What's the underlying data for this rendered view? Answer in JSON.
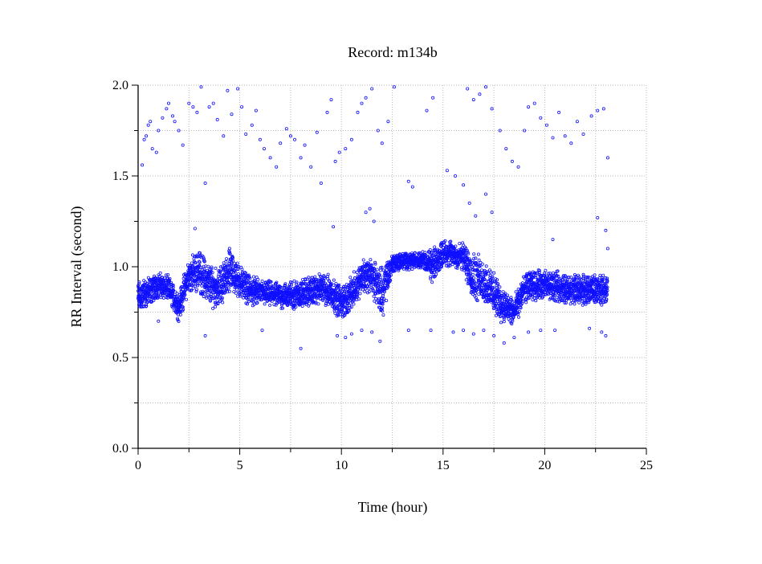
{
  "chart_data": {
    "type": "scatter",
    "title": "Record:  m134b",
    "xlabel": "Time (hour)",
    "ylabel": "RR Interval (second)",
    "xlim": [
      0,
      25
    ],
    "ylim": [
      0,
      2.0
    ],
    "xticks": [
      "0",
      "5",
      "10",
      "15",
      "20",
      "25"
    ],
    "yticks": [
      "0.0",
      "0.5",
      "1.0",
      "1.5",
      "2.0"
    ],
    "grid": true,
    "marker": "open-circle",
    "color": "#1010ff",
    "main_band": {
      "x": [
        0,
        0.5,
        1,
        1.5,
        2,
        2.5,
        3,
        3.5,
        4,
        4.5,
        5,
        5.5,
        6,
        7,
        8,
        9,
        9.5,
        10,
        10.5,
        11,
        11.5,
        12,
        12.5,
        13,
        14,
        14.5,
        15,
        16,
        16.5,
        17,
        17.5,
        18,
        18.5,
        19,
        19.5,
        20,
        21,
        22,
        23,
        23.1
      ],
      "center": [
        0.83,
        0.86,
        0.9,
        0.88,
        0.78,
        0.95,
        0.98,
        0.9,
        0.88,
        0.98,
        0.92,
        0.87,
        0.86,
        0.84,
        0.85,
        0.88,
        0.86,
        0.8,
        0.85,
        0.95,
        0.95,
        0.85,
        1.02,
        1.03,
        1.04,
        1.0,
        1.08,
        1.05,
        0.95,
        0.92,
        0.85,
        0.78,
        0.75,
        0.88,
        0.9,
        0.9,
        0.88,
        0.87,
        0.88,
        0.88
      ],
      "spread": [
        0.08,
        0.07,
        0.06,
        0.06,
        0.07,
        0.08,
        0.1,
        0.1,
        0.09,
        0.1,
        0.08,
        0.07,
        0.06,
        0.06,
        0.07,
        0.07,
        0.08,
        0.08,
        0.08,
        0.08,
        0.08,
        0.12,
        0.05,
        0.04,
        0.04,
        0.08,
        0.06,
        0.07,
        0.12,
        0.1,
        0.1,
        0.08,
        0.07,
        0.07,
        0.07,
        0.07,
        0.07,
        0.07,
        0.07,
        0.07
      ]
    },
    "outliers": [
      [
        0.2,
        1.56
      ],
      [
        0.3,
        1.7
      ],
      [
        0.4,
        1.72
      ],
      [
        0.5,
        1.78
      ],
      [
        0.6,
        1.8
      ],
      [
        0.7,
        1.65
      ],
      [
        0.9,
        1.63
      ],
      [
        1.0,
        1.75
      ],
      [
        1.2,
        1.82
      ],
      [
        1.4,
        1.87
      ],
      [
        1.5,
        1.9
      ],
      [
        1.7,
        1.83
      ],
      [
        1.8,
        1.8
      ],
      [
        2.0,
        1.75
      ],
      [
        2.2,
        1.67
      ],
      [
        2.5,
        1.9
      ],
      [
        2.7,
        1.88
      ],
      [
        2.9,
        1.85
      ],
      [
        3.1,
        1.99
      ],
      [
        3.3,
        1.46
      ],
      [
        3.5,
        1.88
      ],
      [
        3.7,
        1.9
      ],
      [
        3.9,
        1.81
      ],
      [
        4.2,
        1.72
      ],
      [
        4.4,
        1.97
      ],
      [
        4.6,
        1.84
      ],
      [
        4.9,
        1.98
      ],
      [
        5.1,
        1.88
      ],
      [
        5.3,
        1.73
      ],
      [
        5.6,
        1.78
      ],
      [
        5.8,
        1.86
      ],
      [
        6.0,
        1.7
      ],
      [
        6.2,
        1.65
      ],
      [
        6.5,
        1.6
      ],
      [
        6.8,
        1.55
      ],
      [
        7.0,
        1.68
      ],
      [
        7.3,
        1.76
      ],
      [
        7.5,
        1.72
      ],
      [
        7.7,
        1.7
      ],
      [
        8.0,
        1.6
      ],
      [
        8.2,
        1.67
      ],
      [
        8.5,
        1.55
      ],
      [
        8.8,
        1.74
      ],
      [
        9.0,
        1.46
      ],
      [
        9.3,
        1.85
      ],
      [
        9.5,
        1.92
      ],
      [
        9.7,
        1.58
      ],
      [
        9.9,
        1.63
      ],
      [
        10.2,
        1.65
      ],
      [
        10.5,
        1.7
      ],
      [
        10.8,
        1.85
      ],
      [
        11.0,
        1.9
      ],
      [
        11.2,
        1.93
      ],
      [
        11.5,
        1.98
      ],
      [
        11.8,
        1.75
      ],
      [
        12.0,
        1.68
      ],
      [
        12.3,
        1.8
      ],
      [
        12.6,
        1.99
      ],
      [
        14.2,
        1.86
      ],
      [
        14.5,
        1.93
      ],
      [
        16.2,
        1.98
      ],
      [
        16.5,
        1.92
      ],
      [
        16.8,
        1.95
      ],
      [
        17.1,
        1.99
      ],
      [
        17.4,
        1.87
      ],
      [
        17.8,
        1.75
      ],
      [
        18.1,
        1.65
      ],
      [
        18.4,
        1.58
      ],
      [
        18.7,
        1.55
      ],
      [
        19.0,
        1.75
      ],
      [
        19.2,
        1.88
      ],
      [
        19.5,
        1.9
      ],
      [
        19.8,
        1.82
      ],
      [
        20.1,
        1.78
      ],
      [
        20.4,
        1.71
      ],
      [
        20.7,
        1.85
      ],
      [
        21.0,
        1.72
      ],
      [
        21.3,
        1.68
      ],
      [
        21.6,
        1.8
      ],
      [
        21.9,
        1.73
      ],
      [
        22.3,
        1.83
      ],
      [
        22.6,
        1.86
      ],
      [
        22.9,
        1.87
      ],
      [
        23.1,
        1.6
      ],
      [
        13.3,
        1.47
      ],
      [
        13.5,
        1.44
      ],
      [
        15.2,
        1.53
      ],
      [
        15.6,
        1.5
      ],
      [
        16.0,
        1.45
      ],
      [
        16.3,
        1.35
      ],
      [
        16.6,
        1.28
      ],
      [
        17.1,
        1.4
      ],
      [
        17.4,
        1.3
      ],
      [
        11.2,
        1.3
      ],
      [
        11.4,
        1.32
      ],
      [
        11.6,
        1.25
      ],
      [
        9.6,
        1.22
      ],
      [
        2.8,
        1.21
      ],
      [
        4.5,
        1.1
      ],
      [
        20.4,
        1.15
      ],
      [
        22.6,
        1.27
      ],
      [
        23.0,
        1.2
      ],
      [
        23.1,
        1.1
      ],
      [
        1.0,
        0.7
      ],
      [
        3.3,
        0.62
      ],
      [
        6.1,
        0.65
      ],
      [
        8.0,
        0.55
      ],
      [
        9.8,
        0.62
      ],
      [
        10.2,
        0.61
      ],
      [
        10.5,
        0.63
      ],
      [
        11.0,
        0.65
      ],
      [
        11.5,
        0.64
      ],
      [
        11.9,
        0.59
      ],
      [
        13.3,
        0.65
      ],
      [
        14.4,
        0.65
      ],
      [
        15.5,
        0.64
      ],
      [
        16.0,
        0.65
      ],
      [
        16.5,
        0.63
      ],
      [
        17.0,
        0.65
      ],
      [
        17.5,
        0.62
      ],
      [
        18.0,
        0.58
      ],
      [
        18.5,
        0.61
      ],
      [
        19.2,
        0.64
      ],
      [
        19.8,
        0.65
      ],
      [
        20.5,
        0.65
      ],
      [
        22.2,
        0.66
      ],
      [
        22.8,
        0.64
      ],
      [
        23.0,
        0.62
      ]
    ]
  }
}
